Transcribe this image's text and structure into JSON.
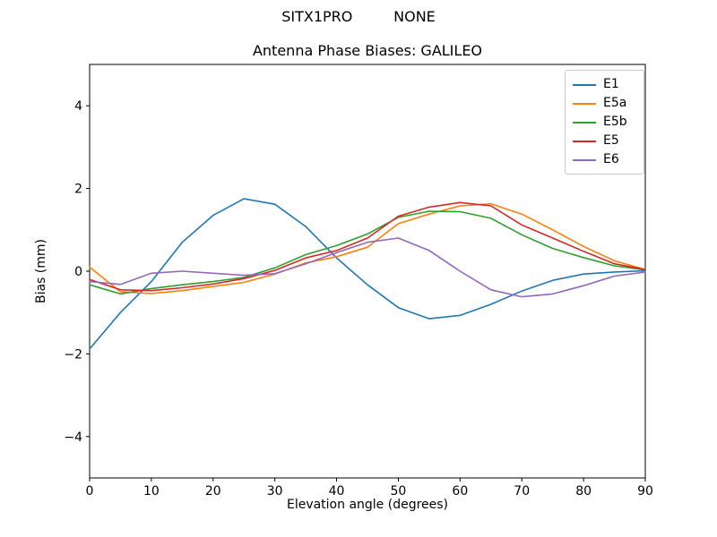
{
  "figure": {
    "suptitle": "SITX1PRO         NONE"
  },
  "chart_data": {
    "type": "line",
    "title": "Antenna Phase Biases: GALILEO",
    "xlabel": "Elevation angle (degrees)",
    "ylabel": "Bias (mm)",
    "xlim": [
      0,
      90
    ],
    "ylim": [
      -5,
      5
    ],
    "xticks": [
      0,
      10,
      20,
      30,
      40,
      50,
      60,
      70,
      80,
      90
    ],
    "yticks": [
      -4,
      -2,
      0,
      2,
      4
    ],
    "grid": false,
    "legend_position": "upper right",
    "x": [
      0,
      5,
      10,
      15,
      20,
      25,
      30,
      35,
      40,
      45,
      50,
      55,
      60,
      65,
      70,
      75,
      80,
      85,
      90
    ],
    "series": [
      {
        "name": "E1",
        "color": "#1f77b4",
        "values": [
          -1.88,
          -1.0,
          -0.25,
          0.7,
          1.35,
          1.75,
          1.62,
          1.08,
          0.32,
          -0.33,
          -0.88,
          -1.15,
          -1.07,
          -0.8,
          -0.48,
          -0.22,
          -0.07,
          -0.02,
          0.01
        ]
      },
      {
        "name": "E5a",
        "color": "#ff7f0e",
        "values": [
          0.1,
          -0.5,
          -0.54,
          -0.47,
          -0.37,
          -0.27,
          -0.07,
          0.2,
          0.35,
          0.58,
          1.15,
          1.38,
          1.58,
          1.63,
          1.38,
          1.0,
          0.6,
          0.25,
          0.04
        ]
      },
      {
        "name": "E5b",
        "color": "#2ca02c",
        "values": [
          -0.33,
          -0.55,
          -0.42,
          -0.33,
          -0.25,
          -0.15,
          0.08,
          0.4,
          0.62,
          0.9,
          1.3,
          1.45,
          1.44,
          1.28,
          0.88,
          0.55,
          0.33,
          0.13,
          0.03
        ]
      },
      {
        "name": "E5",
        "color": "#d62728",
        "values": [
          -0.2,
          -0.45,
          -0.47,
          -0.4,
          -0.31,
          -0.18,
          0.02,
          0.32,
          0.5,
          0.8,
          1.33,
          1.55,
          1.66,
          1.58,
          1.12,
          0.8,
          0.48,
          0.18,
          0.04
        ]
      },
      {
        "name": "E6",
        "color": "#9467bd",
        "values": [
          -0.25,
          -0.32,
          -0.05,
          0.0,
          -0.05,
          -0.1,
          -0.06,
          0.18,
          0.45,
          0.7,
          0.8,
          0.5,
          0.0,
          -0.45,
          -0.62,
          -0.55,
          -0.35,
          -0.12,
          -0.02
        ]
      }
    ]
  }
}
